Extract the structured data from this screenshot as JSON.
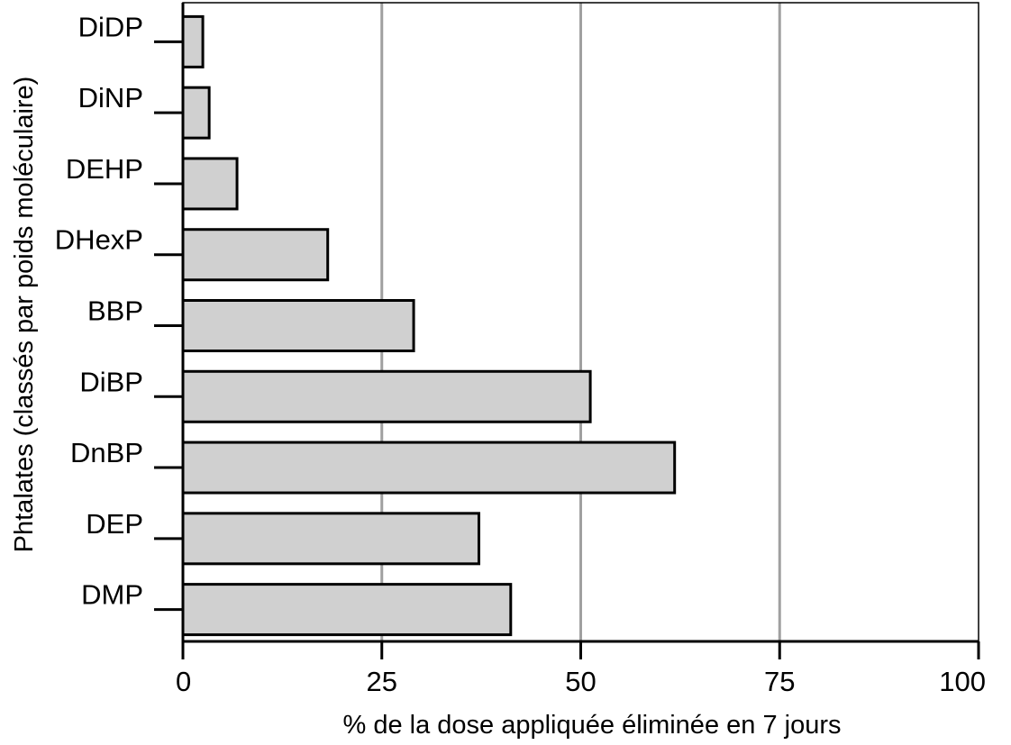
{
  "chart_data": {
    "type": "bar",
    "orientation": "horizontal",
    "categories": [
      "DiDP",
      "DiNP",
      "DEHP",
      "DHexP",
      "BBP",
      "DiBP",
      "DnBP",
      "DEP",
      "DMP"
    ],
    "values": [
      2.5,
      3.3,
      6.8,
      18.2,
      29,
      51.2,
      61.8,
      37.2,
      41.2
    ],
    "xlabel": "% de la dose appliquée éliminée en 7 jours",
    "ylabel": "Phtalates (classés par poids moléculaire)",
    "xlim": [
      0,
      100
    ],
    "xticks": [
      "0",
      "25",
      "50",
      "75",
      "100"
    ],
    "grid": "vertical",
    "colors": {
      "bar_fill": "#d0d0d0",
      "bar_stroke": "#000000",
      "grid": "#a0a0a0",
      "axis": "#000000"
    }
  }
}
